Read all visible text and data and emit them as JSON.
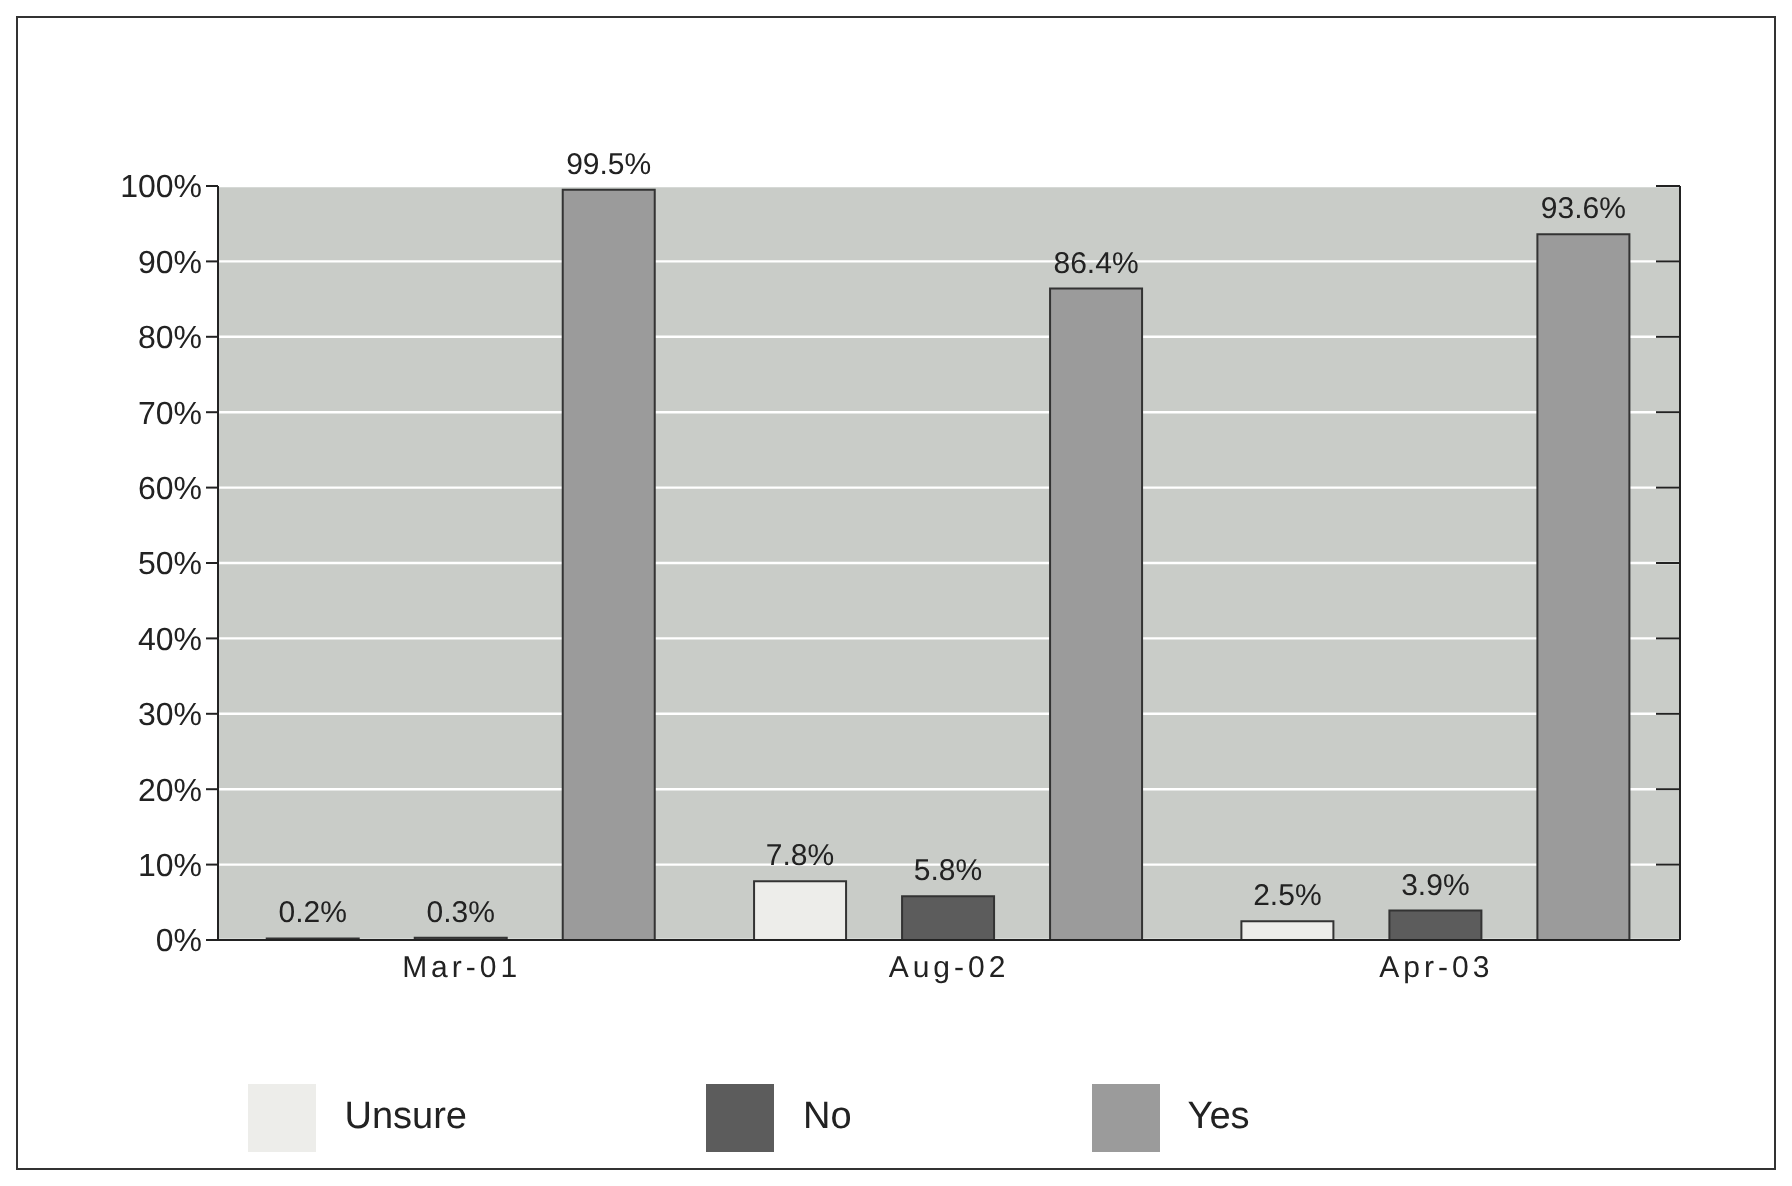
{
  "chart_data": {
    "type": "bar",
    "categories": [
      "Mar-01",
      "Aug-02",
      "Apr-03"
    ],
    "series": [
      {
        "name": "Unsure",
        "color": "#ededea",
        "values": [
          0.2,
          7.8,
          2.5
        ],
        "value_labels": [
          "0.2%",
          "7.8%",
          "2.5%"
        ]
      },
      {
        "name": "No",
        "color": "#5c5c5c",
        "values": [
          0.3,
          5.8,
          3.9
        ],
        "value_labels": [
          "0.3%",
          "5.8%",
          "3.9%"
        ]
      },
      {
        "name": "Yes",
        "color": "#9b9b9b",
        "values": [
          99.5,
          86.4,
          93.6
        ],
        "value_labels": [
          "99.5%",
          "86.4%",
          "93.6%"
        ]
      }
    ],
    "ylim": [
      0,
      100
    ],
    "yticks": [
      {
        "value": 0,
        "label": "0%"
      },
      {
        "value": 10,
        "label": "10%"
      },
      {
        "value": 20,
        "label": "20%"
      },
      {
        "value": 30,
        "label": "30%"
      },
      {
        "value": 40,
        "label": "40%"
      },
      {
        "value": 50,
        "label": "50%"
      },
      {
        "value": 60,
        "label": "60%"
      },
      {
        "value": 70,
        "label": "70%"
      },
      {
        "value": 80,
        "label": "80%"
      },
      {
        "value": 90,
        "label": "90%"
      },
      {
        "value": 100,
        "label": "100%"
      }
    ],
    "grid": "y",
    "legend": "bottom"
  }
}
